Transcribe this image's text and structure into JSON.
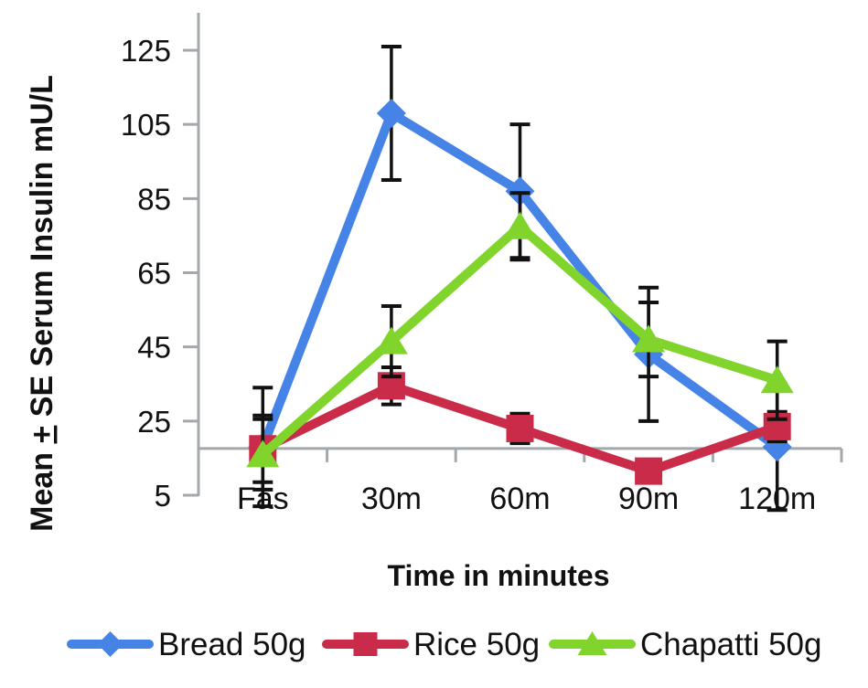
{
  "figure": {
    "background": "#ffffff"
  },
  "chart_data": {
    "type": "line",
    "title": "",
    "xlabel": "Time in minutes",
    "ylabel_text": "Mean ± SE Serum Insulin mU/L",
    "ylabel_parts": {
      "prefix": "Mean ",
      "plus": "+",
      "suffix": " SE Serum Insulin mU/L"
    },
    "categories": [
      "Fas",
      "30m",
      "60m",
      "90m",
      "120m"
    ],
    "series": [
      {
        "name": "Bread 50g",
        "marker": "diamond",
        "color": "#4583e6",
        "values": [
          18,
          108,
          87,
          43,
          18
        ],
        "se": [
          16,
          18,
          18,
          18,
          17
        ]
      },
      {
        "name": "Rice 50g",
        "marker": "square",
        "color": "#c92b49",
        "values": [
          17.5,
          34.5,
          23,
          11.5,
          23.5
        ],
        "se": [
          9,
          5,
          4,
          3,
          4
        ]
      },
      {
        "name": "Chapatti 50g",
        "marker": "triangle",
        "color": "#80d42c",
        "values": [
          16,
          46.5,
          77.5,
          47,
          36
        ],
        "se": [
          9.5,
          9.5,
          9,
          10,
          10.5
        ]
      }
    ],
    "yticks": [
      5,
      25,
      45,
      65,
      85,
      105,
      125
    ],
    "ylim": [
      5,
      135
    ],
    "x_axis_cross_value": 17.6,
    "grid": false,
    "legend_position": "bottom",
    "axis_color": "#a2a8ab",
    "error_bar_color": "#111111",
    "text_color": "#111111"
  }
}
